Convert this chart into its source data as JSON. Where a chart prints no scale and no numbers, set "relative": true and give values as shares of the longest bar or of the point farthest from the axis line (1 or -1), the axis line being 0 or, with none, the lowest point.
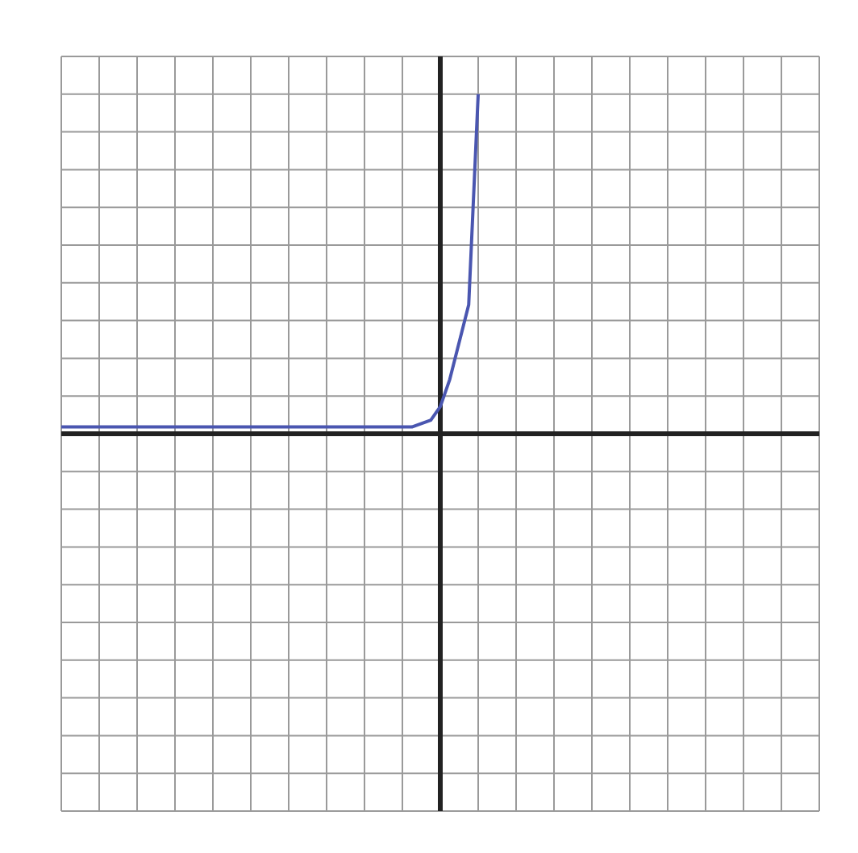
{
  "chart_data": {
    "type": "line",
    "relative": true,
    "grid": true,
    "tick_labels": false,
    "legend": false,
    "marker": "none",
    "line_style": "solid",
    "categories": [
      null,
      null,
      null,
      null,
      null,
      null,
      null,
      null,
      null,
      null,
      null,
      null,
      null,
      null,
      null,
      null,
      null,
      null,
      null,
      null,
      null,
      null,
      null,
      null,
      null,
      null,
      null,
      null,
      null,
      null,
      null,
      null,
      null,
      null,
      null,
      null,
      null,
      null,
      null,
      null,
      null,
      null,
      null,
      null,
      null,
      null,
      null,
      null,
      null,
      null,
      null,
      null,
      null,
      null,
      null,
      null,
      null,
      null,
      null,
      null,
      null,
      null,
      null,
      null,
      null,
      null,
      null,
      null,
      null,
      null,
      null,
      null,
      null,
      null,
      null,
      null,
      null,
      null,
      null,
      null,
      null
    ],
    "series": [
      {
        "color": "#4a56b0",
        "values": [
          0.02,
          0.02,
          0.02,
          0.02,
          0.02,
          0.02,
          0.02,
          0.02,
          0.02,
          0.02,
          0.02,
          0.02,
          0.02,
          0.02,
          0.02,
          0.02,
          0.02,
          0.02,
          0.02,
          0.02,
          0.02,
          0.02,
          0.02,
          0.02,
          0.02,
          0.02,
          0.02,
          0.02,
          0.02,
          0.02,
          0.02,
          0.02,
          0.02,
          0.02,
          0.02,
          0.02,
          0.02,
          0.02,
          0.03,
          0.04,
          0.08,
          0.16,
          0.27,
          0.38,
          1,
          null,
          null,
          null,
          null,
          null,
          null,
          null,
          null,
          null,
          null,
          null,
          null,
          null,
          null,
          null,
          null,
          null,
          null,
          null,
          null,
          null,
          null,
          null,
          null,
          null,
          null,
          null,
          null,
          null,
          null,
          null,
          null,
          null,
          null,
          null,
          null
        ]
      }
    ]
  }
}
